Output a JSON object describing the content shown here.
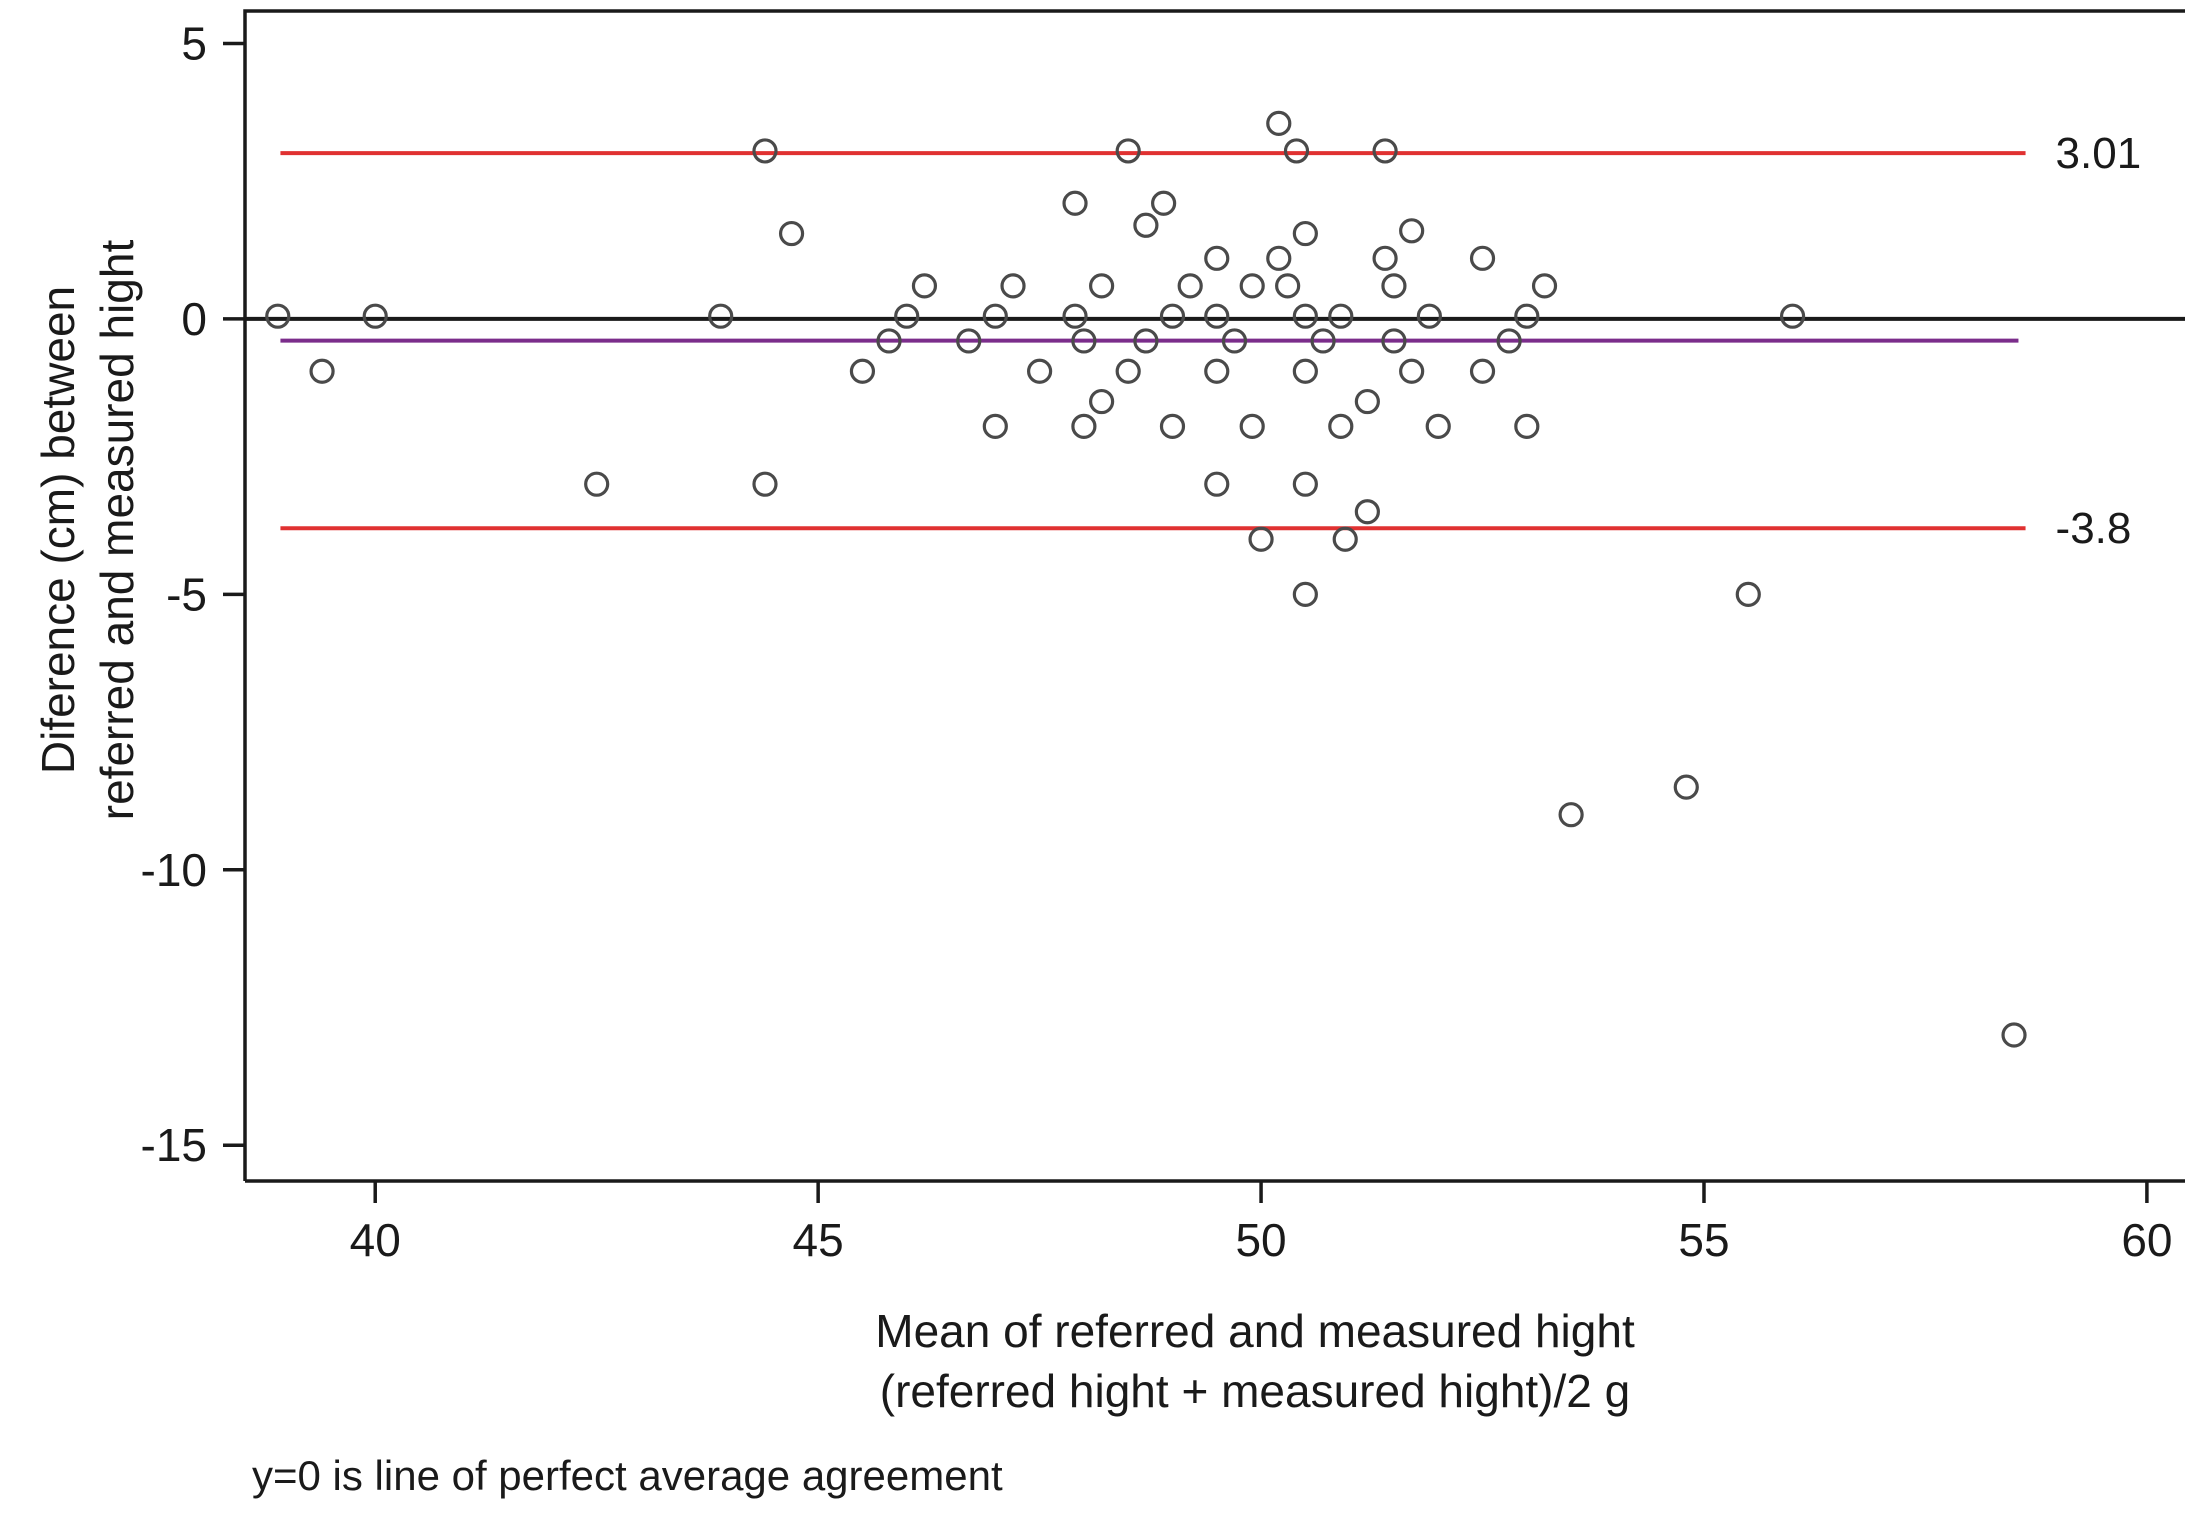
{
  "chart_data": {
    "type": "scatter",
    "title": "",
    "xlabel_lines": [
      "Mean of referred and measured hight",
      "(referred hight + measured hight)/2 g"
    ],
    "ylabel_lines": [
      "Diference (cm) between",
      "referred and measured hight"
    ],
    "footnote": "y=0 is line of perfect average agreement",
    "xlim": [
      38.53,
      60.43
    ],
    "ylim": [
      -15.65,
      5.59
    ],
    "xticks": [
      40,
      45,
      50,
      55,
      60
    ],
    "yticks": [
      5,
      0,
      -5,
      -10,
      -15
    ],
    "grid": false,
    "legend": "none",
    "colors": {
      "limit_line": "#e03131",
      "zero_line": "#1a1a1a",
      "mean_line": "#7b2d8b",
      "marker_stroke": "#4a4a4a"
    },
    "reference_lines": [
      {
        "y": 3.01,
        "x0": 38.93,
        "x1": 58.63,
        "color": "#e03131",
        "label": "3.01"
      },
      {
        "y": 0,
        "x0": 38.53,
        "x1": 60.43,
        "color": "#1a1a1a",
        "label": ""
      },
      {
        "y": -0.395,
        "x0": 38.93,
        "x1": 58.55,
        "color": "#7b2d8b",
        "label": ""
      },
      {
        "y": -3.8,
        "x0": 38.93,
        "x1": 58.63,
        "color": "#e03131",
        "label": "-3.8"
      }
    ],
    "points": [
      [
        38.9,
        0.05
      ],
      [
        40.0,
        0.05
      ],
      [
        39.4,
        -0.95
      ],
      [
        42.5,
        -3.0
      ],
      [
        43.9,
        0.05
      ],
      [
        44.4,
        3.05
      ],
      [
        44.4,
        -3.0
      ],
      [
        44.7,
        1.55
      ],
      [
        45.5,
        -0.95
      ],
      [
        45.8,
        -0.4
      ],
      [
        46.0,
        0.05
      ],
      [
        46.2,
        0.6
      ],
      [
        46.7,
        -0.4
      ],
      [
        47.0,
        0.05
      ],
      [
        47.0,
        -1.95
      ],
      [
        47.2,
        0.6
      ],
      [
        47.5,
        -0.95
      ],
      [
        47.9,
        2.1
      ],
      [
        47.9,
        0.05
      ],
      [
        48.0,
        -1.95
      ],
      [
        48.0,
        -0.4
      ],
      [
        48.2,
        -1.5
      ],
      [
        48.2,
        0.6
      ],
      [
        48.5,
        3.05
      ],
      [
        48.5,
        -0.95
      ],
      [
        48.7,
        1.7
      ],
      [
        48.7,
        -0.4
      ],
      [
        48.9,
        2.1
      ],
      [
        49.0,
        0.05
      ],
      [
        49.0,
        -1.95
      ],
      [
        49.2,
        0.6
      ],
      [
        49.5,
        1.1
      ],
      [
        49.5,
        0.05
      ],
      [
        49.5,
        -0.95
      ],
      [
        49.5,
        -3.0
      ],
      [
        49.7,
        -0.4
      ],
      [
        49.9,
        0.6
      ],
      [
        49.9,
        -1.95
      ],
      [
        50.0,
        -4.0
      ],
      [
        50.2,
        3.55
      ],
      [
        50.2,
        1.1
      ],
      [
        50.3,
        0.6
      ],
      [
        50.4,
        3.05
      ],
      [
        50.5,
        1.55
      ],
      [
        50.5,
        0.05
      ],
      [
        50.5,
        -0.95
      ],
      [
        50.5,
        -3.0
      ],
      [
        50.5,
        -5.0
      ],
      [
        50.7,
        -0.4
      ],
      [
        50.9,
        0.05
      ],
      [
        50.9,
        -1.95
      ],
      [
        50.95,
        -4.0
      ],
      [
        51.2,
        -3.5
      ],
      [
        51.2,
        -1.5
      ],
      [
        51.4,
        3.05
      ],
      [
        51.4,
        1.1
      ],
      [
        51.5,
        0.6
      ],
      [
        51.5,
        -0.4
      ],
      [
        51.7,
        1.6
      ],
      [
        51.7,
        -0.95
      ],
      [
        51.9,
        0.05
      ],
      [
        52.0,
        -1.95
      ],
      [
        52.5,
        1.1
      ],
      [
        52.5,
        -0.95
      ],
      [
        52.8,
        -0.4
      ],
      [
        53.0,
        0.05
      ],
      [
        53.0,
        -1.95
      ],
      [
        53.2,
        0.6
      ],
      [
        53.5,
        -9.0
      ],
      [
        54.8,
        -8.5
      ],
      [
        55.5,
        -5.0
      ],
      [
        56.0,
        0.05
      ],
      [
        58.5,
        -13.0
      ]
    ]
  }
}
